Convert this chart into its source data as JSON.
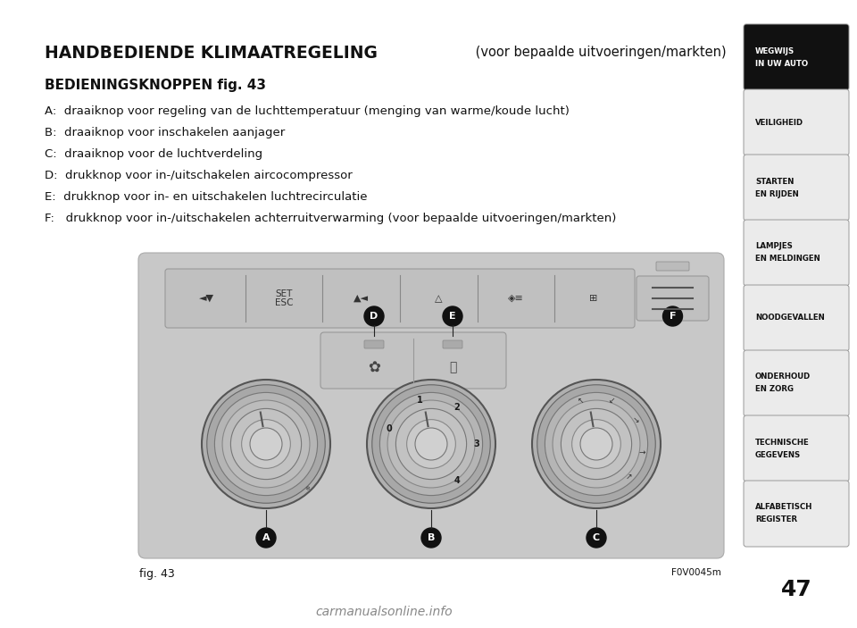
{
  "title_bold": "HANDBEDIENDE KLIMAATREGELING",
  "title_normal": " (voor bepaalde uitvoeringen/markten)",
  "subtitle": "BEDIENINGSKNOPPEN fig. 43",
  "lines": [
    "A:  draaiknop voor regeling van de luchttemperatuur (menging van warme/koude lucht)",
    "B:  draaiknop voor inschakelen aanjager",
    "C:  draaiknop voor de luchtverdeling",
    "D:  drukknop voor in-/uitschakelen aircocompressor",
    "E:  drukknop voor in- en uitschakelen luchtrecirculatie",
    "F:   drukknop voor in-/uitschakelen achterruitverwarming (voor bepaalde uitvoeringen/markten)"
  ],
  "fig_label": "fig. 43",
  "fig_code": "F0V0045m",
  "page_number": "47",
  "sidebar_items": [
    {
      "text": "WEGWIJS\nIN UW AUTO",
      "active": true
    },
    {
      "text": "VEILIGHEID",
      "active": false
    },
    {
      "text": "STARTEN\nEN RIJDEN",
      "active": false
    },
    {
      "text": "LAMPJES\nEN MELDINGEN",
      "active": false
    },
    {
      "text": "NOODGEVALLEN",
      "active": false
    },
    {
      "text": "ONDERHOUD\nEN ZORG",
      "active": false
    },
    {
      "text": "TECHNISCHE\nGEGEVENS",
      "active": false
    },
    {
      "text": "ALFABETISCH\nREGISTER",
      "active": false
    }
  ],
  "bg_color": "#ffffff",
  "sidebar_active_bg": "#111111",
  "sidebar_active_fg": "#ffffff",
  "sidebar_inactive_bg": "#ebebeb",
  "sidebar_inactive_fg": "#111111",
  "sidebar_border": "#bbbbbb",
  "text_color": "#111111",
  "watermark": "carmanualsonline.info"
}
